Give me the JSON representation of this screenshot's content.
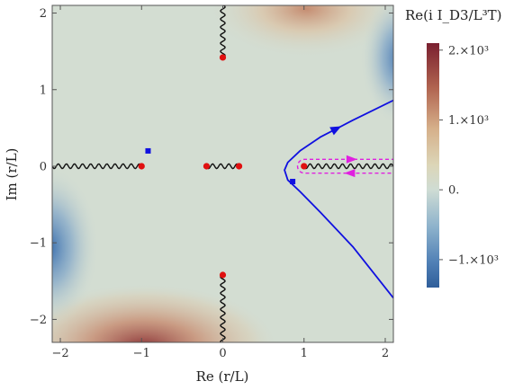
{
  "chart_data": {
    "type": "heatmap",
    "xlabel": "Re (r/L)",
    "ylabel": "Im (r/L)",
    "xlim": [
      -2.1,
      2.1
    ],
    "ylim": [
      -2.3,
      2.1
    ],
    "x_ticks": [
      -2,
      -1,
      0,
      1,
      2
    ],
    "x_tick_labels": [
      "−2",
      "−1",
      "0",
      "1",
      "2"
    ],
    "y_ticks": [
      -2,
      -1,
      0,
      1,
      2
    ],
    "y_tick_labels": [
      "−2",
      "−1",
      "0",
      "1",
      "2"
    ],
    "colorbar": {
      "title": "Re(i I_D3/L³T)",
      "range": [
        -1400,
        2100
      ],
      "ticks": [
        {
          "value": 2000,
          "label": "2.×10³"
        },
        {
          "value": 1000,
          "label": "1.×10³"
        },
        {
          "value": 0,
          "label": "0."
        },
        {
          "value": -1000,
          "label": "−1.×10³"
        }
      ],
      "colors": {
        "low": "#2f5e9a",
        "mid": "#d3ddd2",
        "high": "#7a2030"
      }
    },
    "poles": [
      {
        "x": 0,
        "y": 1.42
      },
      {
        "x": 0,
        "y": -1.42
      },
      {
        "x": -1,
        "y": 0
      },
      {
        "x": -0.2,
        "y": 0
      },
      {
        "x": 0.2,
        "y": 0
      },
      {
        "x": 1,
        "y": 0
      }
    ],
    "branch_cuts": [
      {
        "x1": 0,
        "y1": 1.42,
        "x2": 0,
        "y2": 2.1
      },
      {
        "x1": 0,
        "y1": -1.42,
        "x2": 0,
        "y2": -2.3
      },
      {
        "x1": -2.1,
        "y1": 0,
        "x2": -1,
        "y2": 0
      },
      {
        "x1": -0.2,
        "y1": 0,
        "x2": 0.2,
        "y2": 0
      },
      {
        "x1": 1,
        "y1": 0,
        "x2": 2.1,
        "y2": 0
      }
    ],
    "endpoints": [
      {
        "x": -0.92,
        "y": 0.2
      },
      {
        "x": 0.86,
        "y": -0.2
      }
    ],
    "contour": {
      "name": "integration contour",
      "color": "#1010e0",
      "points": [
        [
          2.1,
          0.86
        ],
        [
          1.6,
          0.6
        ],
        [
          1.2,
          0.38
        ],
        [
          0.95,
          0.2
        ],
        [
          0.8,
          0.05
        ],
        [
          0.76,
          -0.05
        ],
        [
          0.8,
          -0.18
        ],
        [
          0.95,
          -0.33
        ],
        [
          1.2,
          -0.6
        ],
        [
          1.6,
          -1.05
        ],
        [
          2.1,
          -1.72
        ]
      ]
    },
    "keyhole": {
      "name": "keyhole contour",
      "color": "#e020e0",
      "x_left": 0.92,
      "x_right": 2.1,
      "half_width": 0.09
    }
  }
}
